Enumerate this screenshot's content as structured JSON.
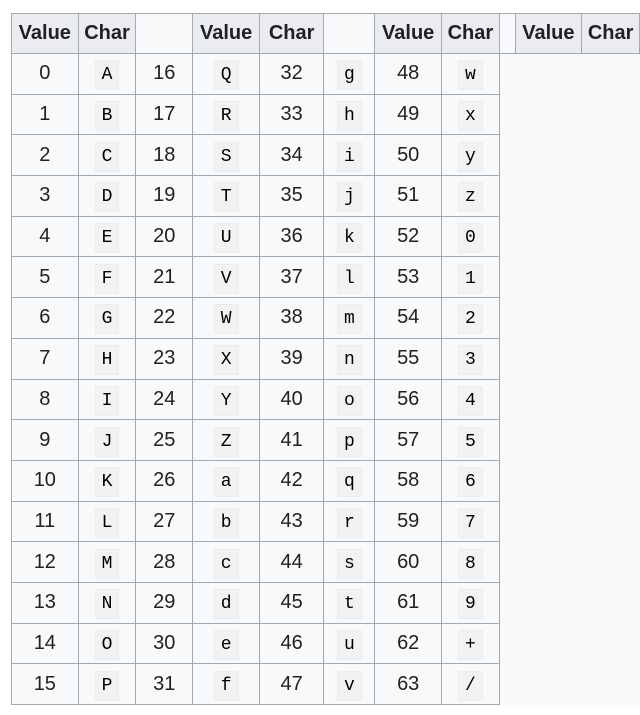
{
  "headers": {
    "value": "Value",
    "char": "Char"
  },
  "groups": [
    {
      "rows": [
        [
          "0",
          "A"
        ],
        [
          "1",
          "B"
        ],
        [
          "2",
          "C"
        ],
        [
          "3",
          "D"
        ],
        [
          "4",
          "E"
        ],
        [
          "5",
          "F"
        ],
        [
          "6",
          "G"
        ],
        [
          "7",
          "H"
        ],
        [
          "8",
          "I"
        ],
        [
          "9",
          "J"
        ],
        [
          "10",
          "K"
        ],
        [
          "11",
          "L"
        ],
        [
          "12",
          "M"
        ],
        [
          "13",
          "N"
        ],
        [
          "14",
          "O"
        ],
        [
          "15",
          "P"
        ]
      ]
    },
    {
      "rows": [
        [
          "16",
          "Q"
        ],
        [
          "17",
          "R"
        ],
        [
          "18",
          "S"
        ],
        [
          "19",
          "T"
        ],
        [
          "20",
          "U"
        ],
        [
          "21",
          "V"
        ],
        [
          "22",
          "W"
        ],
        [
          "23",
          "X"
        ],
        [
          "24",
          "Y"
        ],
        [
          "25",
          "Z"
        ],
        [
          "26",
          "a"
        ],
        [
          "27",
          "b"
        ],
        [
          "28",
          "c"
        ],
        [
          "29",
          "d"
        ],
        [
          "30",
          "e"
        ],
        [
          "31",
          "f"
        ]
      ]
    },
    {
      "rows": [
        [
          "32",
          "g"
        ],
        [
          "33",
          "h"
        ],
        [
          "34",
          "i"
        ],
        [
          "35",
          "j"
        ],
        [
          "36",
          "k"
        ],
        [
          "37",
          "l"
        ],
        [
          "38",
          "m"
        ],
        [
          "39",
          "n"
        ],
        [
          "40",
          "o"
        ],
        [
          "41",
          "p"
        ],
        [
          "42",
          "q"
        ],
        [
          "43",
          "r"
        ],
        [
          "44",
          "s"
        ],
        [
          "45",
          "t"
        ],
        [
          "46",
          "u"
        ],
        [
          "47",
          "v"
        ]
      ]
    },
    {
      "rows": [
        [
          "48",
          "w"
        ],
        [
          "49",
          "x"
        ],
        [
          "50",
          "y"
        ],
        [
          "51",
          "z"
        ],
        [
          "52",
          "0"
        ],
        [
          "53",
          "1"
        ],
        [
          "54",
          "2"
        ],
        [
          "55",
          "3"
        ],
        [
          "56",
          "4"
        ],
        [
          "57",
          "5"
        ],
        [
          "58",
          "6"
        ],
        [
          "59",
          "7"
        ],
        [
          "60",
          "8"
        ],
        [
          "61",
          "9"
        ],
        [
          "62",
          "+"
        ],
        [
          "63",
          "/"
        ]
      ]
    }
  ]
}
